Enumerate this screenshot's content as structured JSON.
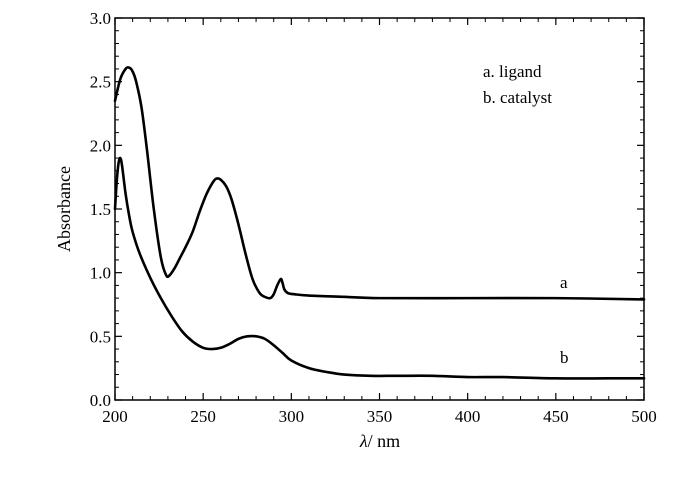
{
  "chart_data": {
    "type": "line",
    "title": "",
    "xlabel_symbol": "λ",
    "xlabel_unit": "/ nm",
    "ylabel": "Absorbance",
    "xlim": [
      200,
      500
    ],
    "ylim": [
      0.0,
      3.0
    ],
    "x_ticks": [
      200,
      250,
      300,
      350,
      400,
      450,
      500
    ],
    "x_tick_labels": [
      "200",
      "250",
      "300",
      "350",
      "400",
      "450",
      "500"
    ],
    "y_ticks": [
      0.0,
      0.5,
      1.0,
      1.5,
      2.0,
      2.5,
      3.0
    ],
    "y_tick_labels": [
      "0.0",
      "0.5",
      "1.0",
      "1.5",
      "2.0",
      "2.5",
      "3.0"
    ],
    "grid": false,
    "legend": {
      "placement": "top-right",
      "entries": [
        "a. ligand",
        "b. catalyst"
      ]
    },
    "series": [
      {
        "label": "a",
        "x": [
          200,
          203,
          206,
          208,
          210,
          212,
          215,
          218,
          222,
          226,
          229,
          231,
          234,
          237,
          240,
          244,
          248,
          252,
          256,
          258,
          260,
          263,
          266,
          270,
          274,
          278,
          282,
          285,
          288,
          290,
          292,
          294,
          295,
          296,
          298,
          302,
          310,
          330,
          350,
          400,
          450,
          500
        ],
        "y": [
          2.35,
          2.52,
          2.6,
          2.61,
          2.58,
          2.5,
          2.3,
          1.98,
          1.5,
          1.12,
          0.98,
          0.98,
          1.04,
          1.12,
          1.2,
          1.32,
          1.48,
          1.62,
          1.72,
          1.74,
          1.73,
          1.68,
          1.58,
          1.38,
          1.15,
          0.95,
          0.84,
          0.81,
          0.8,
          0.83,
          0.9,
          0.95,
          0.92,
          0.87,
          0.84,
          0.83,
          0.82,
          0.81,
          0.8,
          0.8,
          0.8,
          0.79
        ]
      },
      {
        "label": "b",
        "x": [
          200,
          201,
          202,
          203,
          204,
          206,
          208,
          210,
          214,
          220,
          226,
          232,
          238,
          244,
          250,
          255,
          260,
          265,
          270,
          275,
          280,
          285,
          290,
          295,
          300,
          310,
          320,
          330,
          345,
          360,
          380,
          400,
          420,
          450,
          480,
          500
        ],
        "y": [
          1.5,
          1.72,
          1.86,
          1.9,
          1.84,
          1.62,
          1.45,
          1.32,
          1.15,
          0.96,
          0.8,
          0.66,
          0.54,
          0.46,
          0.41,
          0.4,
          0.41,
          0.44,
          0.48,
          0.5,
          0.5,
          0.48,
          0.43,
          0.37,
          0.31,
          0.25,
          0.22,
          0.2,
          0.19,
          0.19,
          0.19,
          0.18,
          0.18,
          0.17,
          0.17,
          0.17
        ]
      }
    ]
  }
}
